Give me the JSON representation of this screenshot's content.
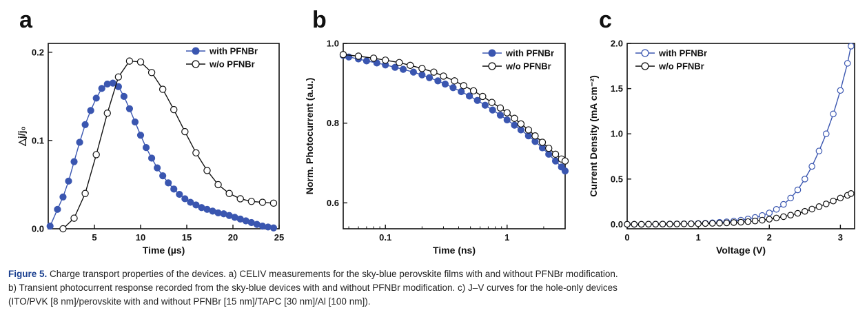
{
  "chart_data": [
    {
      "panel": "a",
      "type": "scatter",
      "xlabel": "Time (µs)",
      "ylabel": "△j/j₀",
      "xlim": [
        0,
        25
      ],
      "ylim": [
        0,
        0.21
      ],
      "xticks": [
        5,
        10,
        15,
        20,
        25
      ],
      "yticks": [
        0.0,
        0.1,
        0.2
      ],
      "legend_position": "top-right",
      "series": [
        {
          "name": "with PFNBr",
          "color": "#3a56b0",
          "marker": "filled-circle",
          "x": [
            0.2,
            1.0,
            1.6,
            2.2,
            2.8,
            3.4,
            4.0,
            4.6,
            5.2,
            5.8,
            6.4,
            7.0,
            7.6,
            8.2,
            8.8,
            9.4,
            10.0,
            10.6,
            11.2,
            11.8,
            12.4,
            13.0,
            13.6,
            14.2,
            14.8,
            15.4,
            16.0,
            16.6,
            17.2,
            17.8,
            18.4,
            19.0,
            19.6,
            20.2,
            20.8,
            21.4,
            22.0,
            22.6,
            23.2,
            23.8,
            24.4
          ],
          "y": [
            0.003,
            0.022,
            0.036,
            0.054,
            0.076,
            0.098,
            0.118,
            0.134,
            0.148,
            0.159,
            0.164,
            0.165,
            0.161,
            0.15,
            0.136,
            0.121,
            0.106,
            0.092,
            0.08,
            0.069,
            0.06,
            0.052,
            0.045,
            0.039,
            0.034,
            0.03,
            0.027,
            0.024,
            0.022,
            0.02,
            0.018,
            0.017,
            0.015,
            0.013,
            0.011,
            0.009,
            0.007,
            0.005,
            0.003,
            0.002,
            0.001
          ]
        },
        {
          "name": "w/o PFNBr",
          "color": "#111111",
          "marker": "open-circle",
          "x": [
            1.6,
            2.8,
            4.0,
            5.2,
            6.4,
            7.6,
            8.8,
            10.0,
            11.2,
            12.4,
            13.6,
            14.8,
            16.0,
            17.2,
            18.4,
            19.6,
            20.8,
            22.0,
            23.2,
            24.4
          ],
          "y": [
            0.0,
            0.012,
            0.04,
            0.084,
            0.131,
            0.172,
            0.19,
            0.189,
            0.177,
            0.158,
            0.135,
            0.11,
            0.086,
            0.066,
            0.05,
            0.04,
            0.034,
            0.031,
            0.03,
            0.029
          ]
        }
      ]
    },
    {
      "panel": "b",
      "type": "scatter",
      "xlabel": "Time (ns)",
      "ylabel": "Norm. Photocurrent (a.u.)",
      "xscale": "log",
      "xlim": [
        0.045,
        3
      ],
      "ylim": [
        0.535,
        1.0
      ],
      "xticks": [
        0.1,
        1
      ],
      "xtick_labels": [
        "0.1",
        "1"
      ],
      "yticks": [
        0.6,
        0.8,
        1.0
      ],
      "legend_position": "top-right",
      "series": [
        {
          "name": "with PFNBr",
          "color": "#3a56b0",
          "marker": "filled-circle",
          "x": [
            0.045,
            0.05,
            0.06,
            0.07,
            0.085,
            0.1,
            0.12,
            0.14,
            0.17,
            0.2,
            0.23,
            0.27,
            0.31,
            0.36,
            0.42,
            0.49,
            0.57,
            0.66,
            0.76,
            0.88,
            1.0,
            1.15,
            1.3,
            1.5,
            1.7,
            1.95,
            2.2,
            2.5,
            2.8,
            3.0
          ],
          "y": [
            0.97,
            0.966,
            0.961,
            0.956,
            0.951,
            0.946,
            0.94,
            0.935,
            0.928,
            0.921,
            0.914,
            0.906,
            0.898,
            0.889,
            0.879,
            0.868,
            0.857,
            0.845,
            0.833,
            0.82,
            0.808,
            0.795,
            0.783,
            0.768,
            0.754,
            0.738,
            0.722,
            0.705,
            0.69,
            0.68
          ]
        },
        {
          "name": "w/o PFNBr",
          "color": "#111111",
          "marker": "open-circle",
          "x": [
            0.045,
            0.06,
            0.08,
            0.1,
            0.13,
            0.16,
            0.2,
            0.25,
            0.3,
            0.37,
            0.44,
            0.53,
            0.63,
            0.75,
            0.88,
            1.0,
            1.15,
            1.3,
            1.5,
            1.7,
            1.95,
            2.2,
            2.5,
            2.8,
            3.0
          ],
          "y": [
            0.972,
            0.968,
            0.963,
            0.958,
            0.952,
            0.945,
            0.937,
            0.928,
            0.918,
            0.906,
            0.894,
            0.881,
            0.867,
            0.852,
            0.838,
            0.826,
            0.812,
            0.798,
            0.783,
            0.768,
            0.752,
            0.737,
            0.722,
            0.71,
            0.705
          ]
        }
      ]
    },
    {
      "panel": "c",
      "type": "line",
      "xlabel": "Voltage (V)",
      "ylabel": "Current Density (mA cm⁻²)",
      "xlim": [
        0,
        3.2
      ],
      "ylim": [
        -0.05,
        2.0
      ],
      "xticks": [
        0,
        1,
        2,
        3
      ],
      "yticks": [
        0.0,
        0.5,
        1.0,
        1.5,
        2.0
      ],
      "legend_position": "top-left",
      "series": [
        {
          "name": "with PFNBr",
          "color": "#3a56b0",
          "marker": "open-circle",
          "x": [
            0.0,
            0.1,
            0.2,
            0.3,
            0.4,
            0.5,
            0.6,
            0.7,
            0.8,
            0.9,
            1.0,
            1.1,
            1.2,
            1.3,
            1.4,
            1.5,
            1.6,
            1.7,
            1.8,
            1.9,
            2.0,
            2.1,
            2.2,
            2.3,
            2.4,
            2.5,
            2.6,
            2.7,
            2.8,
            2.9,
            3.0,
            3.1,
            3.15
          ],
          "y": [
            0.0,
            0.0,
            0.0,
            0.001,
            0.001,
            0.002,
            0.003,
            0.004,
            0.005,
            0.007,
            0.009,
            0.012,
            0.016,
            0.021,
            0.027,
            0.035,
            0.045,
            0.058,
            0.075,
            0.097,
            0.125,
            0.165,
            0.22,
            0.29,
            0.38,
            0.5,
            0.64,
            0.81,
            1.0,
            1.22,
            1.48,
            1.78,
            1.97
          ]
        },
        {
          "name": "w/o PFNBr",
          "color": "#111111",
          "marker": "open-circle",
          "x": [
            0.0,
            0.1,
            0.2,
            0.3,
            0.4,
            0.5,
            0.6,
            0.7,
            0.8,
            0.9,
            1.0,
            1.1,
            1.2,
            1.3,
            1.4,
            1.5,
            1.6,
            1.7,
            1.8,
            1.9,
            2.0,
            2.1,
            2.2,
            2.3,
            2.4,
            2.5,
            2.6,
            2.7,
            2.8,
            2.9,
            3.0,
            3.1,
            3.15
          ],
          "y": [
            0.0,
            0.0,
            0.0,
            0.001,
            0.001,
            0.002,
            0.002,
            0.003,
            0.004,
            0.005,
            0.006,
            0.008,
            0.01,
            0.012,
            0.015,
            0.019,
            0.023,
            0.029,
            0.036,
            0.045,
            0.056,
            0.069,
            0.084,
            0.101,
            0.121,
            0.143,
            0.168,
            0.195,
            0.225,
            0.257,
            0.29,
            0.32,
            0.34
          ]
        }
      ]
    }
  ],
  "caption": {
    "label": "Figure 5.",
    "line1": " Charge transport properties of the devices. a) CELIV measurements for the sky-blue perovskite films with and without PFNBr modification.",
    "line2": "b) Transient photocurrent response recorded from the sky-blue devices with and without PFNBr modification. c) J–V curves for the hole-only devices",
    "line3": "(ITO/PVK [8 nm]/perovskite with and without PFNBr [15 nm]/TAPC [30 nm]/Al [100 nm])."
  }
}
